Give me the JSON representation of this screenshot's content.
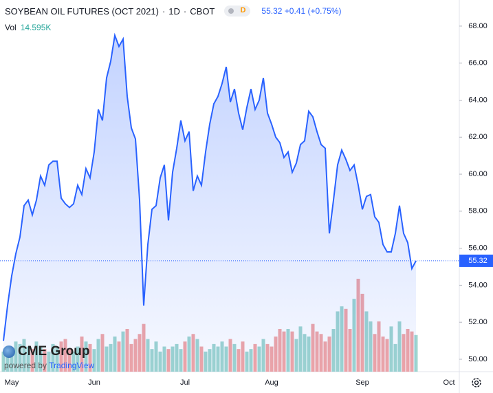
{
  "header": {
    "title": "SOYBEAN OIL FUTURES (OCT 2021)",
    "interval": "1D",
    "exchange": "CBOT",
    "badge": "D",
    "last": "55.32",
    "change": "+0.41",
    "change_pct": "(+0.75%)"
  },
  "chart_data": {
    "type": "line",
    "color": "#2962ff",
    "categories": [
      null,
      null,
      "May",
      null,
      null,
      null,
      null,
      null,
      null,
      null,
      null,
      null,
      null,
      null,
      null,
      null,
      null,
      null,
      null,
      null,
      null,
      null,
      "Jun",
      null,
      null,
      null,
      null,
      null,
      null,
      null,
      null,
      null,
      null,
      null,
      null,
      null,
      null,
      null,
      null,
      null,
      null,
      null,
      null,
      null,
      "Jul",
      null,
      null,
      null,
      null,
      null,
      null,
      null,
      null,
      null,
      null,
      null,
      null,
      null,
      null,
      null,
      null,
      null,
      null,
      null,
      null,
      "Aug",
      null,
      null,
      null,
      null,
      null,
      null,
      null,
      null,
      null,
      null,
      null,
      null,
      null,
      null,
      null,
      null,
      null,
      null,
      null,
      null,
      null,
      "Sep",
      null,
      null,
      null,
      null,
      null,
      null,
      null,
      null,
      null,
      null,
      null,
      null,
      null,
      null,
      null,
      null,
      null,
      null,
      null,
      null,
      "Oct"
    ],
    "values": [
      51.0,
      52.9,
      54.5,
      55.7,
      56.6,
      58.3,
      58.6,
      57.8,
      58.6,
      59.9,
      59.4,
      60.5,
      60.7,
      60.7,
      58.7,
      58.4,
      58.2,
      58.4,
      59.4,
      58.9,
      60.3,
      59.8,
      61.2,
      63.5,
      62.9,
      65.2,
      66.1,
      67.5,
      66.9,
      67.3,
      64.2,
      62.5,
      61.9,
      58.6,
      52.9,
      56.2,
      58.1,
      58.3,
      59.8,
      60.5,
      57.5,
      60.1,
      61.4,
      62.9,
      61.8,
      62.3,
      59.1,
      59.9,
      59.4,
      61.2,
      62.7,
      63.8,
      64.2,
      64.9,
      65.8,
      63.9,
      64.6,
      63.3,
      62.4,
      63.6,
      64.6,
      63.5,
      64.0,
      65.2,
      63.3,
      62.7,
      62.0,
      61.7,
      60.9,
      61.2,
      60.1,
      60.6,
      61.6,
      61.8,
      63.4,
      63.1,
      62.3,
      61.6,
      61.4,
      56.8,
      58.6,
      60.5,
      61.3,
      60.8,
      60.2,
      60.5,
      59.4,
      58.1,
      58.8,
      58.9,
      57.7,
      57.4,
      56.2,
      55.8,
      55.8,
      56.8,
      58.3,
      56.8,
      56.3,
      54.9,
      55.32,
      null,
      null,
      null,
      null,
      null,
      null,
      null,
      null
    ],
    "volume": {
      "label": "Vol",
      "value_label": "14.595K",
      "up_color": "#9fd6cf",
      "down_color": "#f2a6a5",
      "values": [
        8,
        10,
        9,
        12,
        11,
        13,
        10,
        9,
        12,
        10,
        9,
        8,
        11,
        10,
        12,
        13,
        9,
        8,
        10,
        14,
        12,
        11,
        9,
        13,
        15,
        10,
        11,
        14,
        12,
        16,
        17,
        11,
        13,
        15,
        19,
        13,
        9,
        12,
        8,
        10,
        9,
        10,
        11,
        9,
        12,
        14,
        15,
        13,
        10,
        8,
        9,
        11,
        10,
        12,
        10,
        13,
        11,
        9,
        12,
        8,
        9,
        11,
        10,
        13,
        11,
        10,
        14,
        17,
        16,
        17,
        16,
        13,
        18,
        15,
        14,
        19,
        16,
        15,
        12,
        14,
        17,
        24,
        26,
        25,
        17,
        29,
        37,
        31,
        24,
        20,
        15,
        20,
        14,
        13,
        18,
        11,
        20,
        15,
        17,
        16,
        14.595,
        null,
        null,
        null,
        null,
        null,
        null,
        null,
        null
      ]
    },
    "ylim": [
      49.33,
      69.41
    ],
    "yticks": [
      {
        "value": 50,
        "label": "50.00"
      },
      {
        "value": 52,
        "label": "52.00"
      },
      {
        "value": 54,
        "label": "54.00"
      },
      {
        "value": 56,
        "label": "56.00"
      },
      {
        "value": 58,
        "label": "58.00"
      },
      {
        "value": 60,
        "label": "60.00"
      },
      {
        "value": 62,
        "label": "62.00"
      },
      {
        "value": 64,
        "label": "64.00"
      },
      {
        "value": 66,
        "label": "66.00"
      },
      {
        "value": 68,
        "label": "68.00"
      }
    ],
    "last_price_label": "55.32",
    "grid": false
  },
  "branding": {
    "logo": "CME Group",
    "powered": "powered by",
    "brand": "TradingView"
  }
}
